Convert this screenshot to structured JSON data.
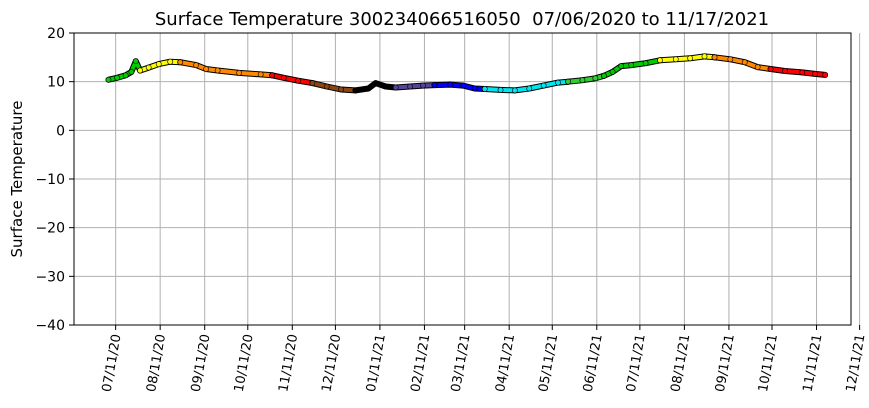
{
  "chart_data": {
    "type": "line",
    "title": "Surface Temperature 300234066516050  07/06/2020 to 11/17/2021",
    "xlabel": "",
    "ylabel": "Surface Temperature",
    "ylim": [
      -40,
      20
    ],
    "xlim": [
      "2020-06-12",
      "2021-12-05"
    ],
    "y_ticks": [
      20,
      10,
      0,
      -10,
      -20,
      -30,
      -40
    ],
    "y_tick_labels": [
      "20",
      "10",
      "0",
      "−10",
      "−20",
      "−30",
      "−40"
    ],
    "x_ticks": [
      "2020-07-11",
      "2020-08-11",
      "2020-09-11",
      "2020-10-11",
      "2020-11-11",
      "2020-12-11",
      "2021-01-11",
      "2021-02-11",
      "2021-03-11",
      "2021-04-11",
      "2021-05-11",
      "2021-06-11",
      "2021-07-11",
      "2021-08-11",
      "2021-09-11",
      "2021-10-11",
      "2021-11-11",
      "2021-12-11"
    ],
    "x_tick_labels": [
      "07/11/20",
      "08/11/20",
      "09/11/20",
      "10/11/20",
      "11/11/20",
      "12/11/20",
      "01/11/21",
      "02/11/21",
      "03/11/21",
      "04/11/21",
      "05/11/21",
      "06/11/21",
      "07/11/21",
      "08/11/21",
      "09/11/21",
      "10/11/21",
      "11/11/21",
      "12/11/21"
    ],
    "grid": true,
    "series": [
      {
        "color": "#00cc00",
        "x": [
          "2020-07-06",
          "2020-07-12",
          "2020-07-18",
          "2020-07-22",
          "2020-07-25",
          "2020-07-28"
        ],
        "y": [
          10.4,
          10.8,
          11.3,
          12.0,
          14.2,
          12.3
        ]
      },
      {
        "color": "#ffff00",
        "x": [
          "2020-07-28",
          "2020-08-03",
          "2020-08-10",
          "2020-08-18",
          "2020-08-25"
        ],
        "y": [
          12.3,
          12.9,
          13.6,
          14.1,
          14.0
        ]
      },
      {
        "color": "#ff8800",
        "x": [
          "2020-08-25",
          "2020-09-05",
          "2020-09-12",
          "2020-09-20",
          "2020-10-05",
          "2020-10-20",
          "2020-10-28"
        ],
        "y": [
          14.0,
          13.4,
          12.6,
          12.3,
          11.8,
          11.5,
          11.3
        ]
      },
      {
        "color": "#ff0000",
        "x": [
          "2020-10-28",
          "2020-11-05",
          "2020-11-15",
          "2020-11-25"
        ],
        "y": [
          11.3,
          10.8,
          10.2,
          9.7
        ]
      },
      {
        "color": "#8b4513",
        "x": [
          "2020-11-25",
          "2020-12-05",
          "2020-12-15",
          "2020-12-25"
        ],
        "y": [
          9.7,
          9.0,
          8.4,
          8.2
        ]
      },
      {
        "color": "#000000",
        "x": [
          "2020-12-25",
          "2021-01-03",
          "2021-01-08",
          "2021-01-15",
          "2021-01-22"
        ],
        "y": [
          8.2,
          8.6,
          9.7,
          9.0,
          8.8
        ]
      },
      {
        "color": "#554499",
        "x": [
          "2021-01-22",
          "2021-02-01",
          "2021-02-10",
          "2021-02-18"
        ],
        "y": [
          8.8,
          9.0,
          9.2,
          9.3
        ]
      },
      {
        "color": "#0000ff",
        "x": [
          "2021-02-18",
          "2021-03-01",
          "2021-03-10",
          "2021-03-18",
          "2021-03-25"
        ],
        "y": [
          9.3,
          9.4,
          9.2,
          8.6,
          8.5
        ]
      },
      {
        "color": "#00e5ee",
        "x": [
          "2021-03-25",
          "2021-04-05",
          "2021-04-15",
          "2021-04-25",
          "2021-05-05",
          "2021-05-15",
          "2021-05-22"
        ],
        "y": [
          8.5,
          8.3,
          8.2,
          8.6,
          9.2,
          9.8,
          10.0
        ]
      },
      {
        "color": "#33cc33",
        "x": [
          "2021-05-22",
          "2021-06-01",
          "2021-06-10",
          "2021-06-16"
        ],
        "y": [
          10.0,
          10.3,
          10.7,
          11.2
        ]
      },
      {
        "color": "#00cc00",
        "x": [
          "2021-06-16",
          "2021-06-22",
          "2021-06-28",
          "2021-07-05",
          "2021-07-15",
          "2021-07-25"
        ],
        "y": [
          11.2,
          12.0,
          13.2,
          13.4,
          13.8,
          14.4
        ]
      },
      {
        "color": "#ffff00",
        "x": [
          "2021-07-25",
          "2021-08-05",
          "2021-08-15",
          "2021-08-25",
          "2021-09-01"
        ],
        "y": [
          14.4,
          14.6,
          14.8,
          15.2,
          15.0
        ]
      },
      {
        "color": "#ff8800",
        "x": [
          "2021-09-01",
          "2021-09-12",
          "2021-09-22",
          "2021-10-01",
          "2021-10-10"
        ],
        "y": [
          15.0,
          14.6,
          14.0,
          13.0,
          12.6
        ]
      },
      {
        "color": "#ff0000",
        "x": [
          "2021-10-10",
          "2021-10-20",
          "2021-11-01",
          "2021-11-10",
          "2021-11-17"
        ],
        "y": [
          12.6,
          12.2,
          11.9,
          11.6,
          11.4
        ]
      }
    ]
  }
}
